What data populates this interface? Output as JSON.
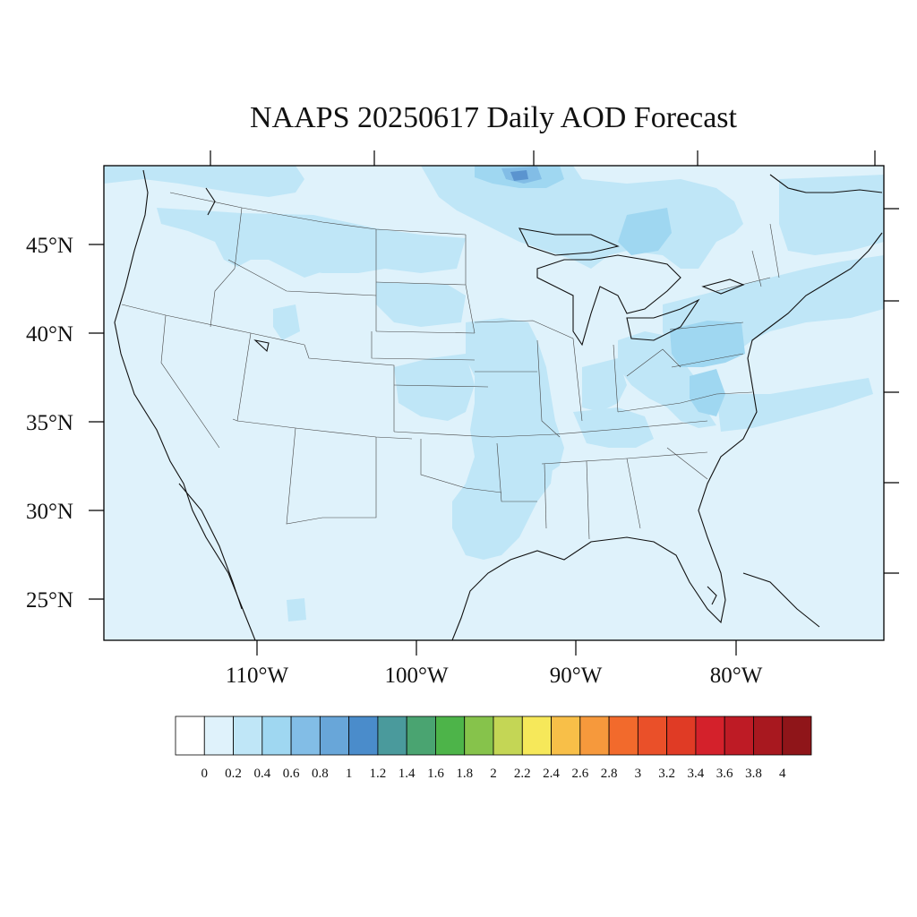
{
  "title": "NAAPS 20250617 Daily AOD Forecast",
  "map": {
    "lat_labels": [
      "45°N",
      "40°N",
      "35°N",
      "30°N",
      "25°N"
    ],
    "lon_labels": [
      "110°W",
      "100°W",
      "90°W",
      "80°W"
    ],
    "background_aod_color": "#dff2fb"
  },
  "colorbar": {
    "tick_labels": [
      "0",
      "0.2",
      "0.4",
      "0.6",
      "0.8",
      "1",
      "1.2",
      "1.4",
      "1.6",
      "1.8",
      "2",
      "2.2",
      "2.4",
      "2.6",
      "2.8",
      "3",
      "3.2",
      "3.4",
      "3.6",
      "3.8",
      "4"
    ],
    "colors": [
      "#ffffff",
      "#dff2fb",
      "#bfe6f7",
      "#9fd7f1",
      "#82bde6",
      "#68a6d9",
      "#4a8ccb",
      "#4a9a9c",
      "#4aa471",
      "#4db449",
      "#86c34b",
      "#c4d655",
      "#f6e85a",
      "#f8bf48",
      "#f6993c",
      "#f26a2c",
      "#ea5029",
      "#e03b25",
      "#d4212b",
      "#be1b25",
      "#a8181f",
      "#8f1519"
    ]
  }
}
